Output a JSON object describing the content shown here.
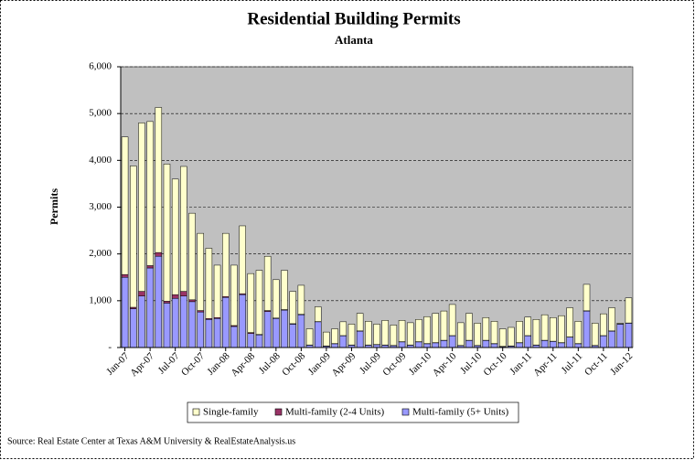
{
  "chart_data": {
    "type": "stacked-bar",
    "title": "Residential Building Permits",
    "subtitle": "Atlanta",
    "y_label": "Permits",
    "source": "Source: Real Estate Center at Texas A&M University & RealEstateAnalysis.us",
    "categories": [
      "Jan-07",
      null,
      null,
      "Apr-07",
      null,
      null,
      "Jul-07",
      null,
      null,
      "Oct-07",
      null,
      null,
      "Jan-08",
      null,
      null,
      "Apr-08",
      null,
      null,
      "Jul-08",
      null,
      null,
      "Oct-08",
      null,
      null,
      "Jan-09",
      null,
      null,
      "Apr-09",
      null,
      null,
      "Jul-09",
      null,
      null,
      "Oct-09",
      null,
      null,
      "Jan-10",
      null,
      null,
      "Apr-10",
      null,
      null,
      "Jul-10",
      null,
      null,
      "Oct-10",
      null,
      null,
      "Jan-11",
      null,
      null,
      "Apr-11",
      null,
      null,
      "Jul-11",
      null,
      null,
      "Oct-11",
      null,
      null,
      "Jan-12"
    ],
    "series": [
      {
        "name": "Single-family",
        "color": "#ffffcc",
        "values": [
          2940,
          3020,
          3600,
          3080,
          3100,
          2930,
          2470,
          2670,
          1850,
          1650,
          1500,
          1120,
          1350,
          1290,
          1450,
          1260,
          1370,
          1160,
          820,
          840,
          690,
          620,
          345,
          315,
          295,
          315,
          295,
          445,
          375,
          505,
          435,
          525,
          435,
          455,
          475,
          475,
          575,
          625,
          625,
          665,
          485,
          575,
          475,
          485,
          475,
          375,
          395,
          455,
          395,
          545,
          545,
          505,
          575,
          625,
          475,
          565,
          475,
          465,
          495,
          15,
          535
        ]
      },
      {
        "name": "Multi-family (2-4 Units)",
        "color": "#993366",
        "values": [
          60,
          30,
          100,
          50,
          80,
          40,
          80,
          100,
          40,
          30,
          20,
          20,
          20,
          20,
          20,
          20,
          10,
          20,
          10,
          10,
          10,
          10,
          5,
          5,
          5,
          5,
          5,
          5,
          5,
          5,
          5,
          5,
          5,
          5,
          5,
          5,
          5,
          5,
          5,
          5,
          5,
          5,
          5,
          5,
          5,
          5,
          5,
          5,
          5,
          5,
          5,
          5,
          5,
          5,
          5,
          5,
          5,
          5,
          5,
          5,
          5
        ]
      },
      {
        "name": "Multi-family (5+ Units)",
        "color": "#9999ff",
        "values": [
          1500,
          830,
          1100,
          1700,
          1950,
          950,
          1050,
          1100,
          980,
          760,
          600,
          620,
          1070,
          450,
          1130,
          300,
          270,
          770,
          620,
          800,
          500,
          700,
          50,
          550,
          30,
          80,
          250,
          50,
          350,
          50,
          60,
          50,
          40,
          120,
          50,
          120,
          80,
          100,
          150,
          250,
          40,
          150,
          40,
          150,
          80,
          20,
          30,
          100,
          250,
          50,
          150,
          130,
          100,
          220,
          80,
          780,
          40,
          250,
          350,
          500,
          520
        ]
      }
    ],
    "ylim": [
      0,
      6000
    ],
    "yticks": [
      {
        "value": 0,
        "label": "-"
      },
      {
        "value": 1000,
        "label": "1,000"
      },
      {
        "value": 2000,
        "label": "2,000"
      },
      {
        "value": 3000,
        "label": "3,000"
      },
      {
        "value": 4000,
        "label": "4,000"
      },
      {
        "value": 5000,
        "label": "5,000"
      },
      {
        "value": 6000,
        "label": "6,000"
      }
    ],
    "grid": true,
    "plot_color": "#c0c0c0"
  }
}
